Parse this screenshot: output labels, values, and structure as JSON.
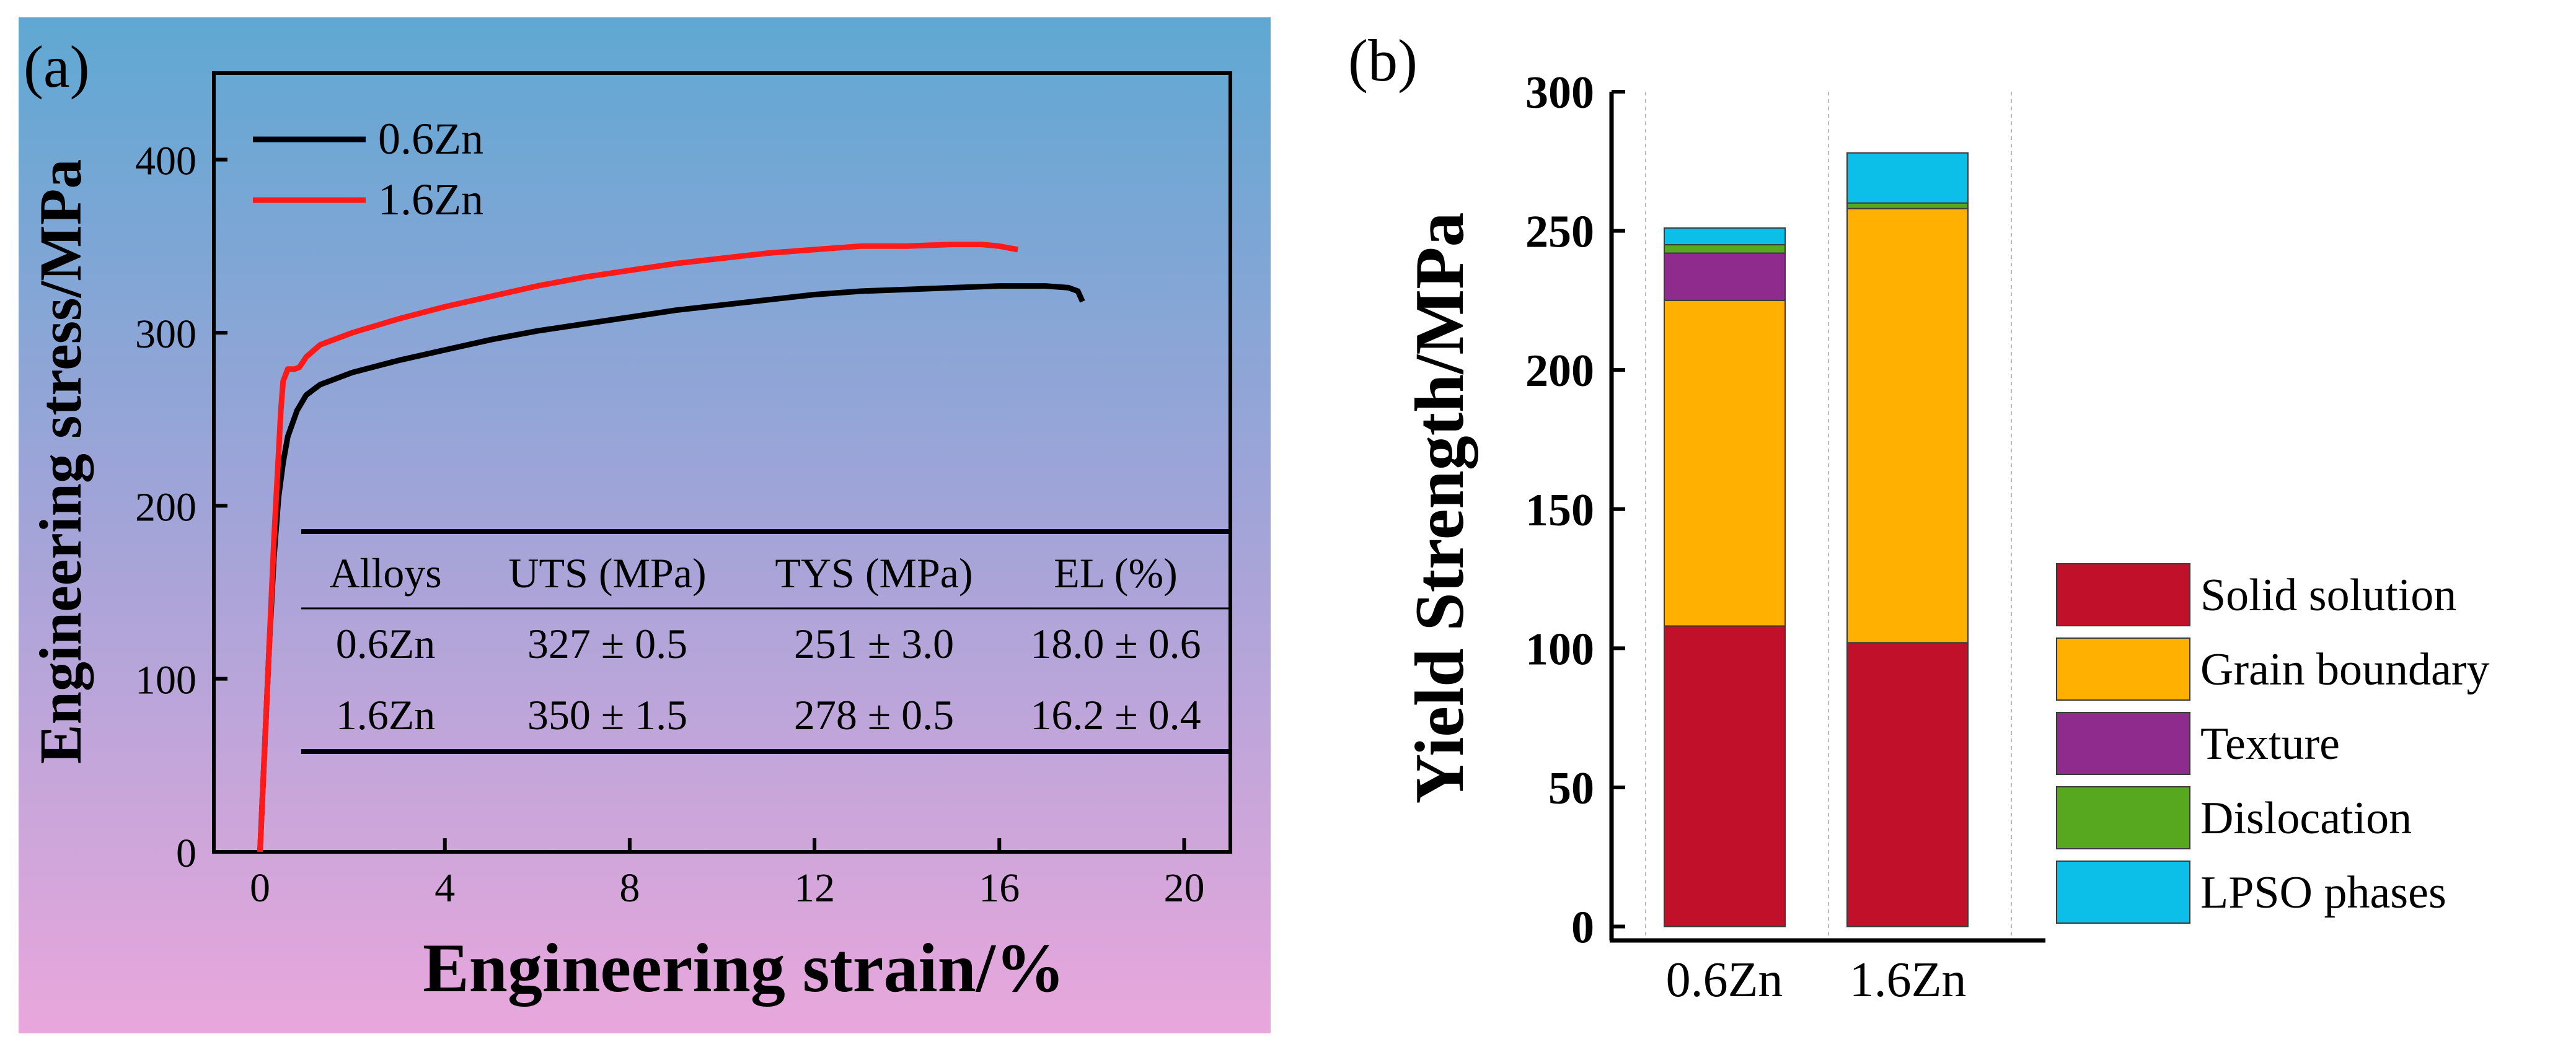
{
  "panel_a": {
    "label": "(a)",
    "background_gradient": [
      "#5fa8d3",
      "#a3a4d8",
      "#e9a7dc"
    ],
    "chart_data": {
      "type": "line",
      "xlabel": "Engineering strain/%",
      "ylabel": "Engineering stress/MPa",
      "xlim": [
        -1,
        21
      ],
      "ylim": [
        0,
        450
      ],
      "xticks": [
        0,
        4,
        8,
        12,
        16,
        20
      ],
      "yticks": [
        0,
        100,
        200,
        300,
        400
      ],
      "series": [
        {
          "name": "0.6Zn",
          "color": "#000000",
          "x": [
            0,
            0.1,
            0.2,
            0.3,
            0.4,
            0.5,
            0.6,
            0.8,
            1.0,
            1.3,
            1.7,
            2,
            3,
            4,
            5,
            6,
            7,
            8,
            9,
            10,
            11,
            12,
            13,
            14,
            15,
            16,
            17,
            17.5,
            17.7,
            17.8
          ],
          "y": [
            0,
            60,
            120,
            170,
            205,
            225,
            240,
            255,
            264,
            270,
            274,
            277,
            284,
            290,
            296,
            301,
            305,
            309,
            313,
            316,
            319,
            322,
            324,
            325,
            326,
            327,
            327,
            326,
            324,
            318
          ]
        },
        {
          "name": "1.6Zn",
          "color": "#ff1a1a",
          "x": [
            0,
            0.1,
            0.2,
            0.3,
            0.4,
            0.45,
            0.5,
            0.6,
            0.75,
            0.85,
            1.0,
            1.3,
            2,
            3,
            4,
            5,
            6,
            7,
            8,
            9,
            10,
            11,
            12,
            13,
            14,
            15,
            15.6,
            16,
            16.4
          ],
          "y": [
            0,
            60,
            120,
            180,
            230,
            255,
            272,
            279,
            279,
            280,
            286,
            293,
            300,
            308,
            315,
            321,
            327,
            332,
            336,
            340,
            343,
            346,
            348,
            350,
            350,
            351,
            351,
            350,
            348
          ]
        }
      ],
      "legend": "top-left"
    },
    "table": {
      "headers": [
        "Alloys",
        "UTS (MPa)",
        "TYS (MPa)",
        "EL (%)"
      ],
      "rows": [
        [
          "0.6Zn",
          "327 ± 0.5",
          "251 ± 3.0",
          "18.0 ± 0.6"
        ],
        [
          "1.6Zn",
          "350 ± 1.5",
          "278 ± 0.5",
          "16.2 ± 0.4"
        ]
      ]
    }
  },
  "panel_b": {
    "label": "(b)",
    "chart_data": {
      "type": "bar",
      "stacked": true,
      "categories": [
        "0.6Zn",
        "1.6Zn"
      ],
      "ylabel": "Yield Strength/MPa",
      "ylim": [
        -5,
        300
      ],
      "yticks": [
        0,
        50,
        100,
        150,
        200,
        250,
        300
      ],
      "series": [
        {
          "name": "Solid solution",
          "color": "#c0102a",
          "values": [
            108,
            102
          ]
        },
        {
          "name": "Grain boundary",
          "color": "#ffb000",
          "values": [
            117,
            156
          ]
        },
        {
          "name": "Texture",
          "color": "#8e2b8c",
          "values": [
            17,
            0
          ]
        },
        {
          "name": "Dislocation",
          "color": "#57a81e",
          "values": [
            3,
            2
          ]
        },
        {
          "name": "LPSO phases",
          "color": "#0bbfe8",
          "values": [
            6,
            18
          ]
        }
      ],
      "legend": "right"
    }
  }
}
